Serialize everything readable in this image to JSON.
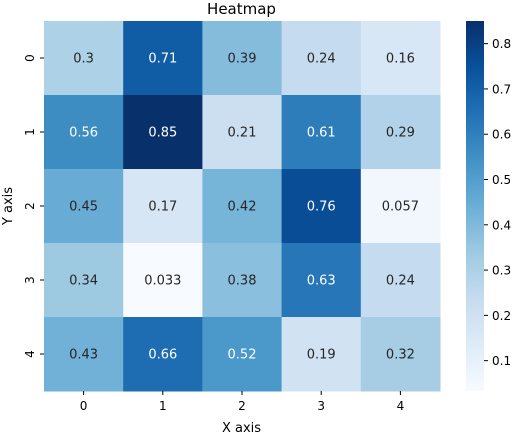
{
  "chart_data": {
    "type": "heatmap",
    "title": "Heatmap",
    "xlabel": "X axis",
    "ylabel": "Y axis",
    "x_categories": [
      "0",
      "1",
      "2",
      "3",
      "4"
    ],
    "y_categories": [
      "0",
      "1",
      "2",
      "3",
      "4"
    ],
    "values": [
      [
        0.3,
        0.71,
        0.39,
        0.24,
        0.16
      ],
      [
        0.56,
        0.85,
        0.21,
        0.61,
        0.29
      ],
      [
        0.45,
        0.17,
        0.42,
        0.76,
        0.057
      ],
      [
        0.34,
        0.033,
        0.38,
        0.63,
        0.24
      ],
      [
        0.43,
        0.66,
        0.52,
        0.19,
        0.32
      ]
    ],
    "value_range": [
      0.033,
      0.85
    ],
    "colormap": "Blues",
    "colorbar": {
      "ticks": [
        "0.1",
        "0.2",
        "0.3",
        "0.4",
        "0.5",
        "0.6",
        "0.7",
        "0.8"
      ]
    },
    "annotations": true,
    "grid": false
  }
}
